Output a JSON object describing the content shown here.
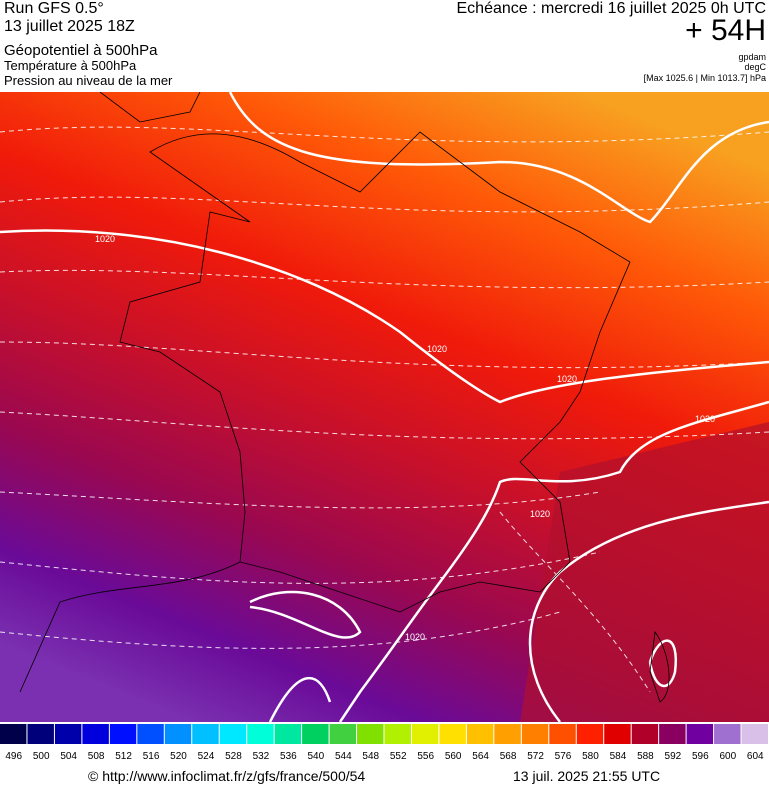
{
  "header": {
    "run": "Run GFS 0.5°",
    "date": "13 juillet 2025 18Z",
    "field1": "Géopotentiel à 500hPa",
    "field2": "Température à 500hPa",
    "field3": "Pression au niveau de la mer",
    "echeance": "Echéance : mercredi 16 juillet 2025 0h UTC",
    "lead": "+ 54H",
    "unit1": "gpdam",
    "unit2": "degC",
    "pressure_range": "[Max 1025.6 | Min 1013.7] hPa"
  },
  "map": {
    "contour_labels": [
      "1020",
      "1020",
      "1020",
      "1020",
      "1020",
      "1020"
    ]
  },
  "colorbar": {
    "labels": [
      "496",
      "500",
      "504",
      "508",
      "512",
      "516",
      "520",
      "524",
      "528",
      "532",
      "536",
      "540",
      "544",
      "548",
      "552",
      "556",
      "560",
      "564",
      "568",
      "572",
      "576",
      "580",
      "584",
      "588",
      "592",
      "596",
      "600",
      "604"
    ],
    "colors": [
      "#00004a",
      "#00007a",
      "#0000aa",
      "#0000dd",
      "#0010ff",
      "#0050ff",
      "#0090ff",
      "#00c0ff",
      "#00e8ff",
      "#00ffd8",
      "#00e8a0",
      "#00d060",
      "#40d040",
      "#80e000",
      "#b0f000",
      "#e0f000",
      "#ffe000",
      "#ffc000",
      "#ffa000",
      "#ff8000",
      "#ff5000",
      "#ff2000",
      "#e00000",
      "#b0002a",
      "#8a0060",
      "#7000a0",
      "#a070d0",
      "#d8c0e8"
    ]
  },
  "footer": {
    "url": "© http://www.infoclimat.fr/z/gfs/france/500/54",
    "timestamp": "13 juil. 2025 21:55 UTC"
  }
}
